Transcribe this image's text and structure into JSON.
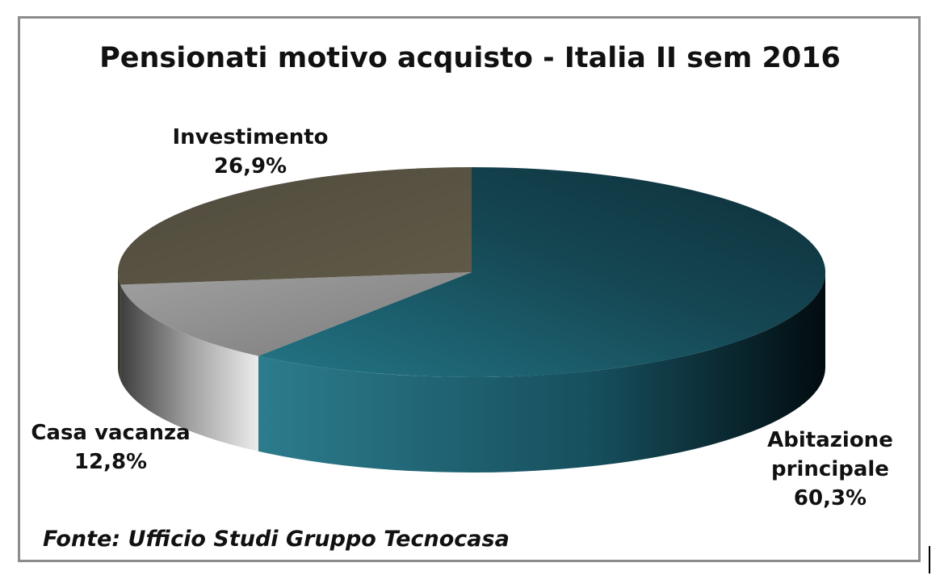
{
  "chart_data": {
    "type": "pie",
    "title": "Pensionati motivo acquisto - Italia II sem 2016",
    "slices": [
      {
        "name": "Abitazione principale",
        "value": 60.3,
        "label_lines": [
          "Abitazione",
          "principale",
          "60,3%"
        ],
        "color": "#1b5a6a"
      },
      {
        "name": "Casa vacanza",
        "value": 12.8,
        "label_lines": [
          "Casa vacanza",
          "12,8%"
        ],
        "color": "#8e8e8e"
      },
      {
        "name": "Investimento",
        "value": 26.9,
        "label_lines": [
          "Investimento",
          "26,9%"
        ],
        "color": "#5a5342"
      }
    ],
    "source": "Fonte: Ufficio Studi Gruppo Tecnocasa",
    "style": "3d-pie",
    "legend": "none"
  }
}
